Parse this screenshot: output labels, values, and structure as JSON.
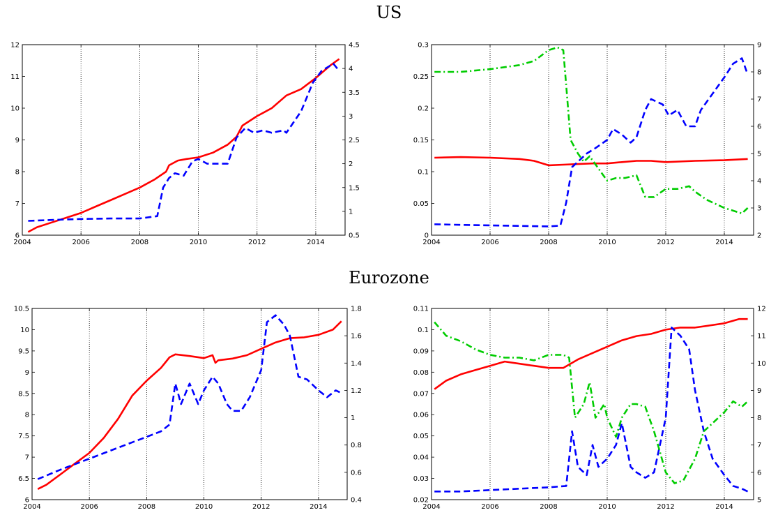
{
  "page": {
    "sections": [
      {
        "title": "US"
      },
      {
        "title": "Eurozone"
      }
    ]
  },
  "chart_data": [
    {
      "type": "line",
      "section": "US",
      "x_ticks": [
        "2004",
        "2006",
        "2008",
        "2010",
        "2012",
        "2014"
      ],
      "xlim": [
        2004,
        2015
      ],
      "y_left": {
        "lim": [
          6,
          12
        ],
        "ticks": [
          "6",
          "7",
          "8",
          "9",
          "10",
          "11",
          "12"
        ]
      },
      "y_right": {
        "lim": [
          0.5,
          4.5
        ],
        "ticks": [
          "0.5",
          "1",
          "1.5",
          "2",
          "2.5",
          "3",
          "3.5",
          "4",
          "4.5"
        ]
      },
      "grid": "vertical dotted",
      "series": [
        {
          "axis": "left",
          "color": "#ff0000",
          "style": "solid",
          "x": [
            2004.2,
            2004.5,
            2005.0,
            2005.5,
            2006.0,
            2006.5,
            2007.0,
            2007.5,
            2008.0,
            2008.5,
            2008.9,
            2009.0,
            2009.3,
            2009.6,
            2010.0,
            2010.5,
            2011.0,
            2011.3,
            2011.5,
            2012.0,
            2012.5,
            2013.0,
            2013.5,
            2014.0,
            2014.5,
            2014.8
          ],
          "y": [
            6.1,
            6.25,
            6.4,
            6.55,
            6.7,
            6.9,
            7.1,
            7.3,
            7.5,
            7.75,
            8.0,
            8.2,
            8.35,
            8.4,
            8.45,
            8.6,
            8.85,
            9.1,
            9.45,
            9.75,
            10.0,
            10.4,
            10.6,
            10.95,
            11.35,
            11.55
          ]
        },
        {
          "axis": "right",
          "color": "#0000ff",
          "style": "dashed",
          "x": [
            2004.2,
            2005.0,
            2006.0,
            2007.0,
            2008.0,
            2008.6,
            2008.8,
            2009.0,
            2009.2,
            2009.5,
            2009.8,
            2010.0,
            2010.3,
            2010.6,
            2011.0,
            2011.3,
            2011.6,
            2011.9,
            2012.2,
            2012.5,
            2012.9,
            2013.0,
            2013.5,
            2013.9,
            2014.2,
            2014.6,
            2014.8
          ],
          "y": [
            0.8,
            0.82,
            0.84,
            0.85,
            0.85,
            0.9,
            1.5,
            1.7,
            1.8,
            1.75,
            2.05,
            2.1,
            2.0,
            2.0,
            2.0,
            2.55,
            2.75,
            2.65,
            2.7,
            2.65,
            2.7,
            2.65,
            3.1,
            3.7,
            3.95,
            4.1,
            3.95
          ]
        }
      ]
    },
    {
      "type": "line",
      "section": "US",
      "x_ticks": [
        "2004",
        "2006",
        "2008",
        "2010",
        "2012",
        "2014"
      ],
      "xlim": [
        2004,
        2015
      ],
      "y_left": {
        "lim": [
          0,
          0.3
        ],
        "ticks": [
          "0",
          "0.05",
          "0.1",
          "0.15",
          "0.2",
          "0.25",
          "0.3"
        ]
      },
      "y_right": {
        "lim": [
          2,
          9
        ],
        "ticks": [
          "2",
          "3",
          "4",
          "5",
          "6",
          "7",
          "8",
          "9"
        ]
      },
      "grid": "vertical dotted",
      "series": [
        {
          "axis": "left",
          "color": "#ff0000",
          "style": "solid",
          "x": [
            2004.1,
            2005.0,
            2006.0,
            2007.0,
            2007.5,
            2008.0,
            2008.5,
            2009.0,
            2009.5,
            2010.0,
            2010.5,
            2011.0,
            2011.5,
            2012.0,
            2013.0,
            2014.0,
            2014.8
          ],
          "y": [
            0.122,
            0.123,
            0.122,
            0.12,
            0.117,
            0.11,
            0.111,
            0.112,
            0.113,
            0.113,
            0.115,
            0.117,
            0.117,
            0.115,
            0.117,
            0.118,
            0.12
          ]
        },
        {
          "axis": "right",
          "color": "#0000ff",
          "style": "dashed",
          "x": [
            2004.1,
            2005.0,
            2006.0,
            2007.0,
            2008.0,
            2008.4,
            2008.6,
            2008.8,
            2009.0,
            2009.3,
            2009.6,
            2010.0,
            2010.2,
            2010.5,
            2010.8,
            2011.0,
            2011.3,
            2011.5,
            2011.9,
            2012.1,
            2012.4,
            2012.7,
            2013.0,
            2013.2,
            2013.6,
            2014.0,
            2014.3,
            2014.6,
            2014.8
          ],
          "y": [
            2.4,
            2.38,
            2.36,
            2.34,
            2.32,
            2.35,
            3.2,
            4.5,
            4.7,
            5.0,
            5.2,
            5.5,
            5.9,
            5.7,
            5.4,
            5.6,
            6.6,
            7.0,
            6.8,
            6.4,
            6.6,
            6.0,
            6.0,
            6.6,
            7.2,
            7.8,
            8.3,
            8.5,
            7.9
          ]
        },
        {
          "axis": "right",
          "color": "#00cc00",
          "style": "dashdot",
          "x": [
            2004.1,
            2005.0,
            2006.0,
            2007.0,
            2007.5,
            2008.0,
            2008.3,
            2008.5,
            2008.6,
            2008.75,
            2009.0,
            2009.2,
            2009.4,
            2009.6,
            2010.0,
            2010.3,
            2010.6,
            2011.0,
            2011.3,
            2011.6,
            2012.0,
            2012.4,
            2012.8,
            2013.0,
            2013.4,
            2014.0,
            2014.3,
            2014.6,
            2014.8
          ],
          "y": [
            8.0,
            8.0,
            8.1,
            8.25,
            8.4,
            8.8,
            8.9,
            8.8,
            7.5,
            5.5,
            5.0,
            4.7,
            4.9,
            4.6,
            4.0,
            4.1,
            4.1,
            4.2,
            3.4,
            3.4,
            3.7,
            3.7,
            3.8,
            3.6,
            3.3,
            3.0,
            2.9,
            2.8,
            3.0
          ]
        }
      ]
    },
    {
      "type": "line",
      "section": "Eurozone",
      "x_ticks": [
        "2004",
        "2006",
        "2008",
        "2010",
        "2012",
        "2014"
      ],
      "xlim": [
        2004,
        2015
      ],
      "y_left": {
        "lim": [
          6,
          10.5
        ],
        "ticks": [
          "6",
          "6.5",
          "7",
          "7.5",
          "8",
          "8.5",
          "9",
          "9.5",
          "10",
          "10.5"
        ]
      },
      "y_right": {
        "lim": [
          0.4,
          1.8
        ],
        "ticks": [
          "0.4",
          "0.6",
          "0.8",
          "1",
          "1.2",
          "1.4",
          "1.6",
          "1.8"
        ]
      },
      "grid": "vertical dotted",
      "series": [
        {
          "axis": "left",
          "color": "#ff0000",
          "style": "solid",
          "x": [
            2004.2,
            2004.5,
            2005.0,
            2005.5,
            2006.0,
            2006.5,
            2007.0,
            2007.5,
            2008.0,
            2008.5,
            2008.8,
            2009.0,
            2009.5,
            2010.0,
            2010.3,
            2010.4,
            2010.5,
            2011.0,
            2011.5,
            2012.0,
            2012.5,
            2013.0,
            2013.5,
            2014.0,
            2014.5,
            2014.8
          ],
          "y": [
            6.25,
            6.35,
            6.6,
            6.85,
            7.1,
            7.45,
            7.9,
            8.45,
            8.8,
            9.1,
            9.35,
            9.42,
            9.38,
            9.33,
            9.4,
            9.22,
            9.28,
            9.32,
            9.4,
            9.55,
            9.7,
            9.8,
            9.82,
            9.88,
            10.0,
            10.2
          ]
        },
        {
          "axis": "right",
          "color": "#0000ff",
          "style": "dashed",
          "x": [
            2004.2,
            2005.0,
            2006.0,
            2007.0,
            2007.5,
            2008.0,
            2008.5,
            2008.8,
            2009.0,
            2009.2,
            2009.5,
            2009.8,
            2010.0,
            2010.3,
            2010.5,
            2010.8,
            2011.0,
            2011.3,
            2011.6,
            2012.0,
            2012.2,
            2012.5,
            2012.8,
            2013.0,
            2013.3,
            2013.6,
            2014.0,
            2014.3,
            2014.6,
            2014.8
          ],
          "y": [
            0.55,
            0.62,
            0.7,
            0.78,
            0.82,
            0.86,
            0.9,
            0.95,
            1.25,
            1.1,
            1.25,
            1.1,
            1.2,
            1.3,
            1.25,
            1.1,
            1.05,
            1.05,
            1.15,
            1.35,
            1.7,
            1.75,
            1.68,
            1.6,
            1.3,
            1.28,
            1.2,
            1.15,
            1.2,
            1.18
          ]
        }
      ]
    },
    {
      "type": "line",
      "section": "Eurozone",
      "x_ticks": [
        "2004",
        "2006",
        "2008",
        "2010",
        "2012",
        "2014"
      ],
      "xlim": [
        2004,
        2015
      ],
      "y_left": {
        "lim": [
          0.02,
          0.11
        ],
        "ticks": [
          "0.02",
          "0.03",
          "0.04",
          "0.05",
          "0.06",
          "0.07",
          "0.08",
          "0.09",
          "0.1",
          "0.11"
        ]
      },
      "y_right": {
        "lim": [
          5,
          12
        ],
        "ticks": [
          "5",
          "6",
          "7",
          "8",
          "9",
          "10",
          "11",
          "12"
        ]
      },
      "grid": "vertical dotted",
      "series": [
        {
          "axis": "left",
          "color": "#ff0000",
          "style": "solid",
          "x": [
            2004.1,
            2004.5,
            2005.0,
            2005.5,
            2006.0,
            2006.5,
            2007.0,
            2007.5,
            2008.0,
            2008.5,
            2009.0,
            2009.5,
            2010.0,
            2010.5,
            2011.0,
            2011.5,
            2012.0,
            2012.5,
            2013.0,
            2013.5,
            2014.0,
            2014.5,
            2014.8
          ],
          "y": [
            0.072,
            0.076,
            0.079,
            0.081,
            0.083,
            0.085,
            0.084,
            0.083,
            0.082,
            0.082,
            0.086,
            0.089,
            0.092,
            0.095,
            0.097,
            0.098,
            0.1,
            0.101,
            0.101,
            0.102,
            0.103,
            0.105,
            0.105
          ]
        },
        {
          "axis": "right",
          "color": "#0000ff",
          "style": "dashed",
          "x": [
            2004.1,
            2005.0,
            2006.0,
            2007.0,
            2008.0,
            2008.6,
            2008.8,
            2009.0,
            2009.3,
            2009.5,
            2009.7,
            2010.0,
            2010.3,
            2010.5,
            2010.8,
            2011.0,
            2011.3,
            2011.6,
            2012.0,
            2012.2,
            2012.5,
            2012.8,
            2013.0,
            2013.3,
            2013.6,
            2014.0,
            2014.3,
            2014.6,
            2014.8
          ],
          "y": [
            5.3,
            5.3,
            5.35,
            5.4,
            5.45,
            5.5,
            7.5,
            6.2,
            5.9,
            7.0,
            6.2,
            6.5,
            7.0,
            7.8,
            6.2,
            6.0,
            5.8,
            6.0,
            8.0,
            11.3,
            11.0,
            10.5,
            9.0,
            7.5,
            6.5,
            5.9,
            5.5,
            5.4,
            5.3
          ]
        },
        {
          "axis": "right",
          "color": "#00cc00",
          "style": "dashdot",
          "x": [
            2004.1,
            2004.5,
            2005.0,
            2005.5,
            2006.0,
            2006.5,
            2007.0,
            2007.5,
            2008.0,
            2008.5,
            2008.7,
            2008.9,
            2009.2,
            2009.4,
            2009.6,
            2009.9,
            2010.0,
            2010.3,
            2010.5,
            2010.8,
            2011.0,
            2011.3,
            2011.6,
            2012.0,
            2012.3,
            2012.6,
            2013.0,
            2013.3,
            2013.6,
            2014.0,
            2014.3,
            2014.6,
            2014.8
          ],
          "y": [
            11.5,
            11.0,
            10.8,
            10.5,
            10.3,
            10.2,
            10.2,
            10.1,
            10.3,
            10.3,
            10.2,
            8.0,
            8.5,
            9.3,
            8.0,
            8.5,
            8.0,
            7.3,
            8.0,
            8.5,
            8.5,
            8.4,
            7.5,
            6.0,
            5.6,
            5.7,
            6.5,
            7.5,
            7.8,
            8.2,
            8.6,
            8.4,
            8.6
          ]
        }
      ]
    }
  ]
}
